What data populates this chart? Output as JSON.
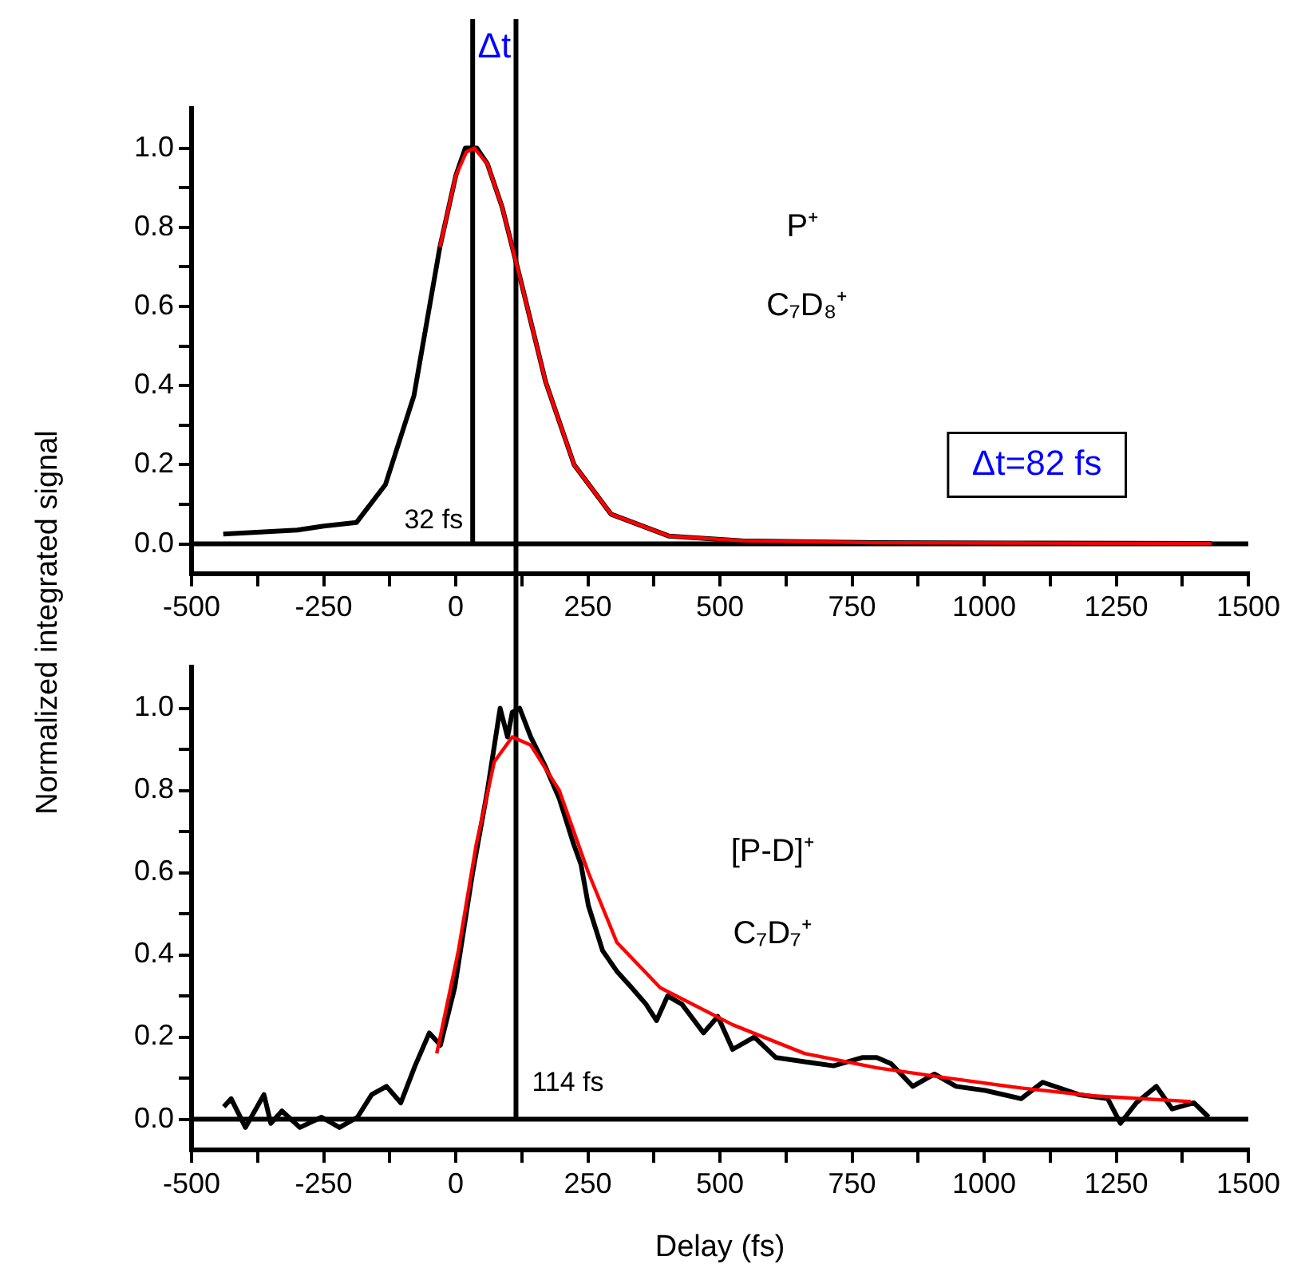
{
  "chart_data": [
    {
      "type": "line",
      "ylabel": "Normalized integrated signal",
      "xlim": [
        -500,
        1500
      ],
      "ylim": [
        -0.075,
        1.1
      ],
      "xticks": [
        -500,
        {
          "value": -375,
          "label": null
        },
        -250,
        {
          "value": -125,
          "label": null
        },
        0,
        {
          "value": 125,
          "label": null
        },
        250,
        {
          "value": 375,
          "label": null
        },
        500,
        {
          "value": 625,
          "label": null
        },
        750,
        {
          "value": 875,
          "label": null
        },
        1000,
        {
          "value": 1125,
          "label": null
        },
        1250,
        {
          "value": 1375,
          "label": null
        },
        1500
      ],
      "yticks": [
        {
          "value": 0,
          "label": "0.0"
        },
        {
          "value": 0.1,
          "label": null
        },
        {
          "value": 0.2,
          "label": "0.2"
        },
        {
          "value": 0.3,
          "label": null
        },
        {
          "value": 0.4,
          "label": "0.4"
        },
        {
          "value": 0.5,
          "label": null
        },
        {
          "value": 0.6,
          "label": "0.6"
        },
        {
          "value": 0.7,
          "label": null
        },
        {
          "value": 0.8,
          "label": "0.8"
        },
        {
          "value": 0.9,
          "label": null
        },
        {
          "value": 1,
          "label": "1.0"
        }
      ],
      "grid": false,
      "legend": false,
      "marker": "none",
      "line_style": "solid",
      "series": [
        {
          "color": "#000000",
          "x": [
            -440,
            -300,
            -250,
            -188,
            -133,
            -79,
            -30,
            0,
            18,
            40,
            60,
            88,
            124,
            170,
            224,
            294,
            403,
            542,
            800,
            1100,
            1430
          ],
          "values": [
            0.025,
            0.035,
            0.045,
            0.054,
            0.15,
            0.375,
            0.75,
            0.93,
            1.0,
            1.0,
            0.96,
            0.85,
            0.66,
            0.41,
            0.2,
            0.075,
            0.02,
            0.008,
            0.003,
            0.002,
            0.001
          ]
        },
        {
          "color": "#ff0000",
          "x": [
            -30,
            0,
            20,
            35,
            60,
            88,
            124,
            170,
            224,
            294,
            403,
            542,
            800,
            1100,
            1430
          ],
          "values": [
            0.75,
            0.93,
            0.99,
            1.0,
            0.96,
            0.85,
            0.66,
            0.41,
            0.2,
            0.075,
            0.02,
            0.008,
            0.003,
            0.002,
            0.001
          ]
        }
      ],
      "ref_lines": [
        {
          "axis": "y",
          "value": 0,
          "color": "#000000"
        },
        {
          "axis": "x",
          "value": 32,
          "label": "32 fs",
          "color": "#000000"
        },
        {
          "axis": "x",
          "value": 114,
          "color": "#000000"
        }
      ],
      "annotations": [
        "Δt",
        "P⁺",
        "C₇D₈⁺",
        "Δt=82 fs"
      ]
    },
    {
      "type": "line",
      "xlabel": "Delay (fs)",
      "xlim": [
        -500,
        1500
      ],
      "ylim": [
        -0.075,
        1.1
      ],
      "xticks": [
        -500,
        {
          "value": -375,
          "label": null
        },
        -250,
        {
          "value": -125,
          "label": null
        },
        0,
        {
          "value": 125,
          "label": null
        },
        250,
        {
          "value": 375,
          "label": null
        },
        500,
        {
          "value": 625,
          "label": null
        },
        750,
        {
          "value": 875,
          "label": null
        },
        1000,
        {
          "value": 1125,
          "label": null
        },
        1250,
        {
          "value": 1375,
          "label": null
        },
        1500
      ],
      "yticks": [
        {
          "value": 0,
          "label": "0.0"
        },
        {
          "value": 0.1,
          "label": null
        },
        {
          "value": 0.2,
          "label": "0.2"
        },
        {
          "value": 0.3,
          "label": null
        },
        {
          "value": 0.4,
          "label": "0.4"
        },
        {
          "value": 0.5,
          "label": null
        },
        {
          "value": 0.6,
          "label": "0.6"
        },
        {
          "value": 0.7,
          "label": null
        },
        {
          "value": 0.8,
          "label": "0.8"
        },
        {
          "value": 0.9,
          "label": null
        },
        {
          "value": 1,
          "label": "1.0"
        }
      ],
      "grid": false,
      "legend": false,
      "marker": "none",
      "line_style": "solid",
      "series": [
        {
          "color": "#000000",
          "x": [
            -439,
            -425,
            -398,
            -363,
            -350,
            -329,
            -295,
            -254,
            -220,
            -186,
            -159,
            -131,
            -104,
            -77,
            -50,
            -29,
            -2,
            32,
            60,
            84,
            98,
            107,
            121,
            142,
            169,
            196,
            223,
            237,
            251,
            278,
            305,
            333,
            360,
            380,
            401,
            428,
            469,
            496,
            524,
            565,
            606,
            660,
            715,
            769,
            797,
            824,
            865,
            906,
            947,
            1002,
            1070,
            1111,
            1179,
            1234,
            1258,
            1288,
            1326,
            1356,
            1397,
            1425
          ],
          "values": [
            0.03,
            0.05,
            -0.02,
            0.06,
            -0.01,
            0.02,
            -0.02,
            0.005,
            -0.02,
            0.005,
            0.06,
            0.08,
            0.04,
            0.13,
            0.21,
            0.18,
            0.32,
            0.6,
            0.8,
            1.0,
            0.93,
            0.99,
            1.0,
            0.93,
            0.86,
            0.78,
            0.67,
            0.62,
            0.52,
            0.41,
            0.36,
            0.32,
            0.28,
            0.24,
            0.3,
            0.28,
            0.21,
            0.25,
            0.17,
            0.2,
            0.15,
            0.14,
            0.13,
            0.15,
            0.15,
            0.135,
            0.08,
            0.11,
            0.08,
            0.07,
            0.05,
            0.09,
            0.06,
            0.05,
            -0.01,
            0.04,
            0.08,
            0.025,
            0.04,
            0.005
          ]
        },
        {
          "color": "#ff0000",
          "x": [
            -36,
            5,
            39,
            73,
            107,
            142,
            196,
            251,
            305,
            387,
            524,
            660,
            797,
            933,
            1070,
            1206,
            1391
          ],
          "values": [
            0.16,
            0.41,
            0.67,
            0.87,
            0.93,
            0.91,
            0.8,
            0.6,
            0.43,
            0.32,
            0.23,
            0.16,
            0.125,
            0.1,
            0.076,
            0.057,
            0.043
          ]
        }
      ],
      "ref_lines": [
        {
          "axis": "y",
          "value": 0,
          "color": "#000000"
        },
        {
          "axis": "x",
          "value": 114,
          "label": "114 fs",
          "color": "#000000"
        }
      ],
      "annotations": [
        "[P-D]⁺",
        "C₇D₇⁺"
      ]
    }
  ]
}
